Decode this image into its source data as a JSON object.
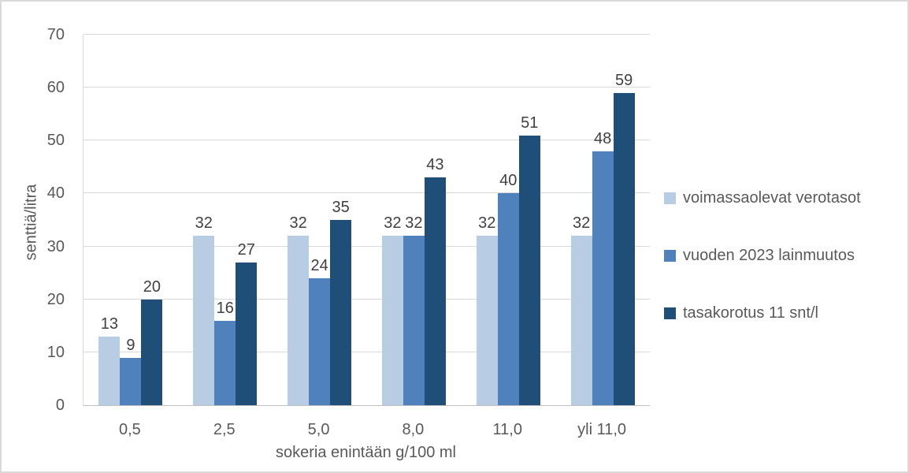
{
  "chart_data": {
    "type": "bar",
    "title": "",
    "xlabel": "sokeria enintään g/100 ml",
    "ylabel": "senttiä/litra",
    "categories": [
      "0,5",
      "2,5",
      "5,0",
      "8,0",
      "11,0",
      "yli 11,0"
    ],
    "series": [
      {
        "name": "voimassaolevat verotasot",
        "color": "#b8cce4",
        "values": [
          13,
          32,
          32,
          32,
          32,
          32
        ]
      },
      {
        "name": "vuoden 2023 lainmuutos",
        "color": "#4f81bd",
        "values": [
          9,
          16,
          24,
          32,
          40,
          48
        ]
      },
      {
        "name": "tasakorotus 11 snt/l",
        "color": "#1f4e79",
        "values": [
          20,
          27,
          35,
          43,
          51,
          59
        ]
      }
    ],
    "ylim": [
      0,
      70
    ],
    "yticks": [
      0,
      10,
      20,
      30,
      40,
      50,
      60,
      70
    ],
    "grid": "horizontal",
    "legend_position": "right",
    "data_labels": true
  },
  "colors": {
    "gridline": "#d9d9d9",
    "axis_line": "#c0c0c0",
    "axis_text": "#595959",
    "data_label_text": "#404040",
    "frame_border": "#d9d9d9",
    "background": "#ffffff"
  }
}
